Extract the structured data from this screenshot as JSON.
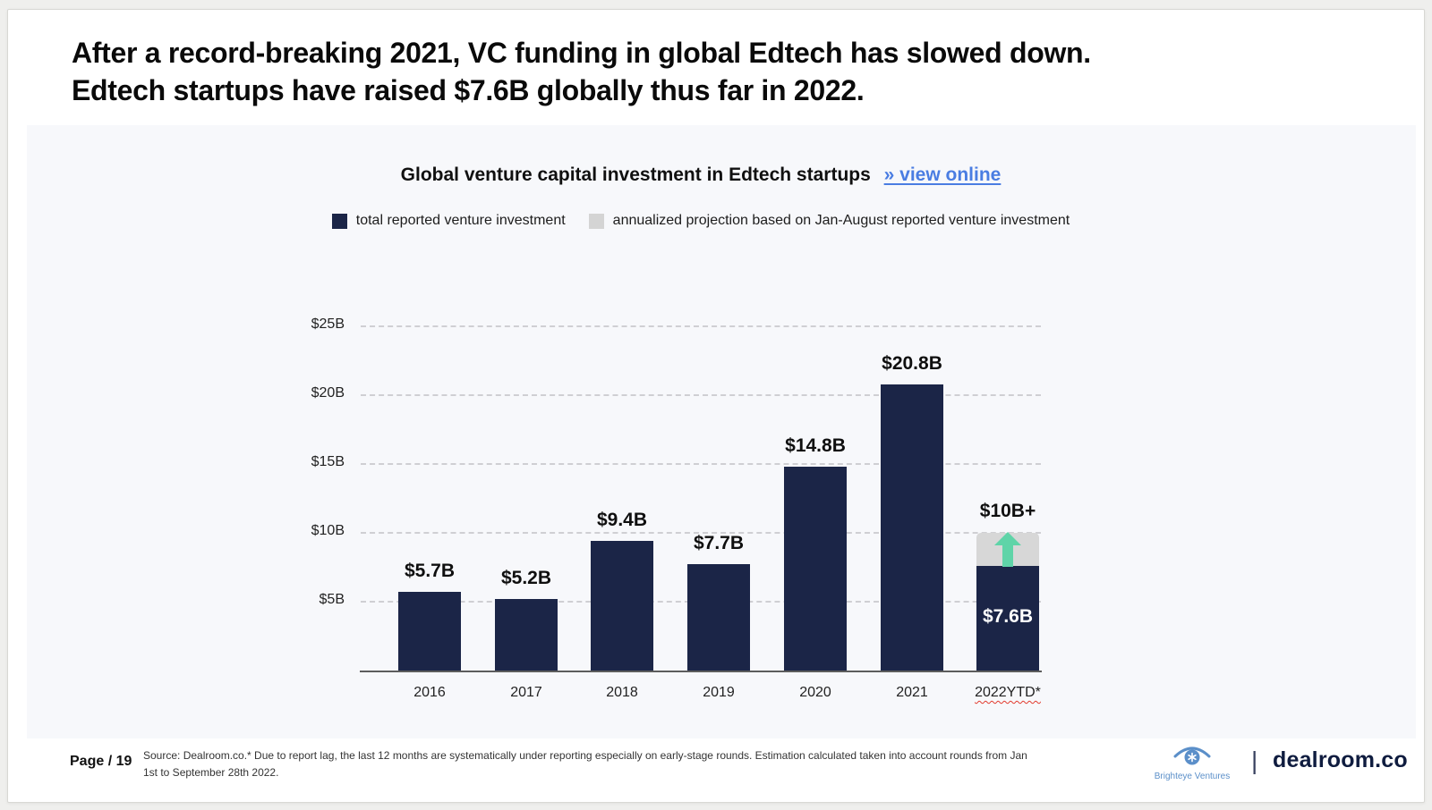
{
  "slide": {
    "title_line1": "After a record-breaking 2021, VC funding in global Edtech has slowed down.",
    "title_line2": "Edtech startups have raised $7.6B globally thus far in 2022."
  },
  "chart_header": {
    "title": "Global venture capital investment in Edtech startups",
    "link_label": "» view online"
  },
  "legend": {
    "items": [
      {
        "label": "total reported venture investment",
        "color": "#1b2547"
      },
      {
        "label": "annualized projection based on Jan-August reported venture investment",
        "color": "#d4d4d4"
      }
    ]
  },
  "chart_data": {
    "type": "bar",
    "title": "Global venture capital investment in Edtech startups",
    "unit": "USD billions",
    "categories": [
      "2016",
      "2017",
      "2018",
      "2019",
      "2020",
      "2021",
      "2022YTD*"
    ],
    "series": [
      {
        "name": "total reported venture investment",
        "color": "#1b2547",
        "values": [
          5.7,
          5.2,
          9.4,
          7.7,
          14.8,
          20.8,
          7.6
        ]
      },
      {
        "name": "annualized projection based on Jan-August reported venture investment",
        "color": "#d7d7d7",
        "values": [
          null,
          null,
          null,
          null,
          null,
          null,
          10
        ]
      }
    ],
    "bar_labels": [
      "$5.7B",
      "$5.2B",
      "$9.4B",
      "$7.7B",
      "$14.8B",
      "$20.8B",
      "$7.6B"
    ],
    "projection_label": "$10B+",
    "y_ticks": [
      {
        "value": 5,
        "label": "$5B"
      },
      {
        "value": 10,
        "label": "$10B"
      },
      {
        "value": 15,
        "label": "$15B"
      },
      {
        "value": 20,
        "label": "$20B"
      },
      {
        "value": 25,
        "label": "$25B"
      }
    ],
    "ylim": [
      0,
      25
    ],
    "grid": "horizontal-dashed",
    "legend_position": "top",
    "arrow_color": "#5fd4a8"
  },
  "footer": {
    "page_label": "Page / 19",
    "source_text": "Source: Dealroom.co.* Due to report lag, the last 12 months are systematically under reporting especially on early-stage rounds. Estimation calculated taken into account rounds from Jan 1st to September 28th 2022.",
    "brighteye_label": "Brighteye Ventures",
    "divider": "|",
    "dealroom_label": "dealroom.co"
  }
}
